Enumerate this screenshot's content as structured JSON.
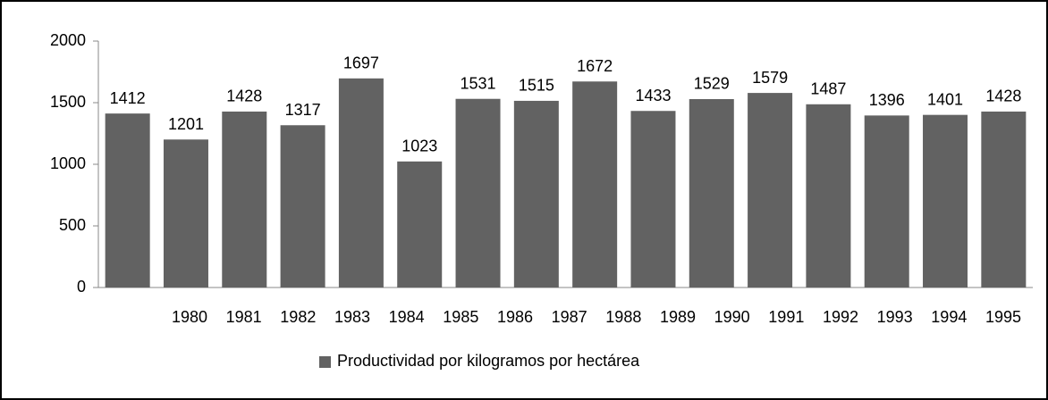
{
  "chart_data": {
    "type": "bar",
    "categories": [
      "1980",
      "1981",
      "1982",
      "1983",
      "1984",
      "1985",
      "1986",
      "1987",
      "1988",
      "1989",
      "1990",
      "1991",
      "1992",
      "1993",
      "1994",
      "1995"
    ],
    "series": [
      {
        "name": "Productividad por kilogramos por hectárea",
        "color": "#626262",
        "values": [
          1412,
          1201,
          1428,
          1317,
          1697,
          1023,
          1531,
          1515,
          1672,
          1433,
          1529,
          1579,
          1487,
          1396,
          1401,
          1428
        ]
      }
    ],
    "ylim": [
      0,
      2000
    ],
    "yticks": [
      0,
      500,
      1000,
      1500,
      2000
    ],
    "legend": "bottom"
  }
}
